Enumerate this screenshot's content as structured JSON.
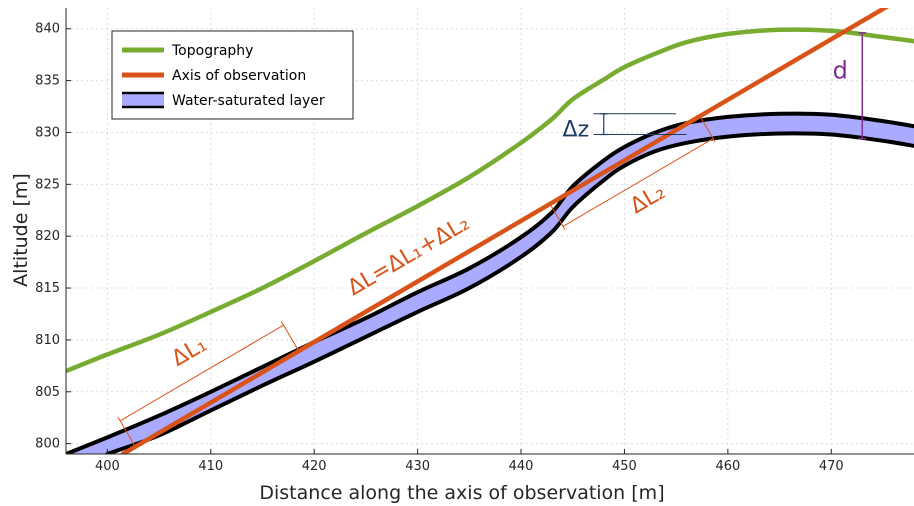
{
  "chart_data": {
    "type": "line",
    "xlabel": "Distance along the axis of observation [m]",
    "ylabel": "Altitude [m]",
    "xlim": [
      396,
      478
    ],
    "ylim": [
      799,
      842
    ],
    "xticks": [
      400,
      410,
      420,
      430,
      440,
      450,
      460,
      470
    ],
    "yticks": [
      800,
      805,
      810,
      815,
      820,
      825,
      830,
      835,
      840
    ],
    "grid": true,
    "legend_position": "top-left",
    "series": [
      {
        "name": "Topography",
        "color": "#77ac30",
        "x": [
          396,
          400,
          405,
          410,
          415,
          420,
          425,
          430,
          435,
          440,
          443,
          445,
          448,
          450,
          453,
          456,
          460,
          465,
          470,
          475,
          478
        ],
        "y": [
          807,
          808.6,
          810.5,
          812.7,
          815.0,
          817.6,
          820.3,
          822.9,
          825.7,
          829.0,
          831.3,
          833.2,
          835.1,
          836.3,
          837.6,
          838.7,
          839.5,
          839.9,
          839.8,
          839.2,
          838.8
        ]
      },
      {
        "name": "Axis of observation",
        "color": "#d95319",
        "x": [
          401.5,
          475.5
        ],
        "y": [
          799,
          842.2
        ]
      },
      {
        "name": "Water-saturated layer",
        "color": "#aaaaff",
        "x": [
          396,
          400,
          405,
          410,
          415,
          420,
          425,
          430,
          435,
          440,
          443,
          445,
          448,
          450,
          453,
          456,
          460,
          465,
          470,
          475,
          478
        ],
        "top": [
          799.0,
          800.6,
          802.7,
          805.0,
          807.4,
          809.8,
          812.1,
          814.6,
          816.9,
          819.9,
          822.3,
          824.8,
          827.3,
          828.6,
          830.0,
          830.9,
          831.5,
          831.8,
          831.7,
          831.1,
          830.6
        ],
        "bottom": [
          null,
          799.0,
          800.8,
          803.2,
          805.6,
          807.9,
          810.3,
          812.7,
          815.0,
          818.0,
          820.4,
          822.8,
          825.4,
          826.8,
          828.2,
          829.0,
          829.6,
          829.9,
          829.8,
          829.2,
          828.7
        ]
      }
    ],
    "annotations": {
      "d_label": "d",
      "dz_label": "Δz",
      "dL_label": "ΔL=ΔL₁+ΔL₂",
      "dL1_label": "ΔL₁",
      "dL2_label": "ΔL₂",
      "d_color": "#7e2f8e",
      "dz_color": "#1f3b63",
      "dL_color": "#d95319"
    }
  }
}
